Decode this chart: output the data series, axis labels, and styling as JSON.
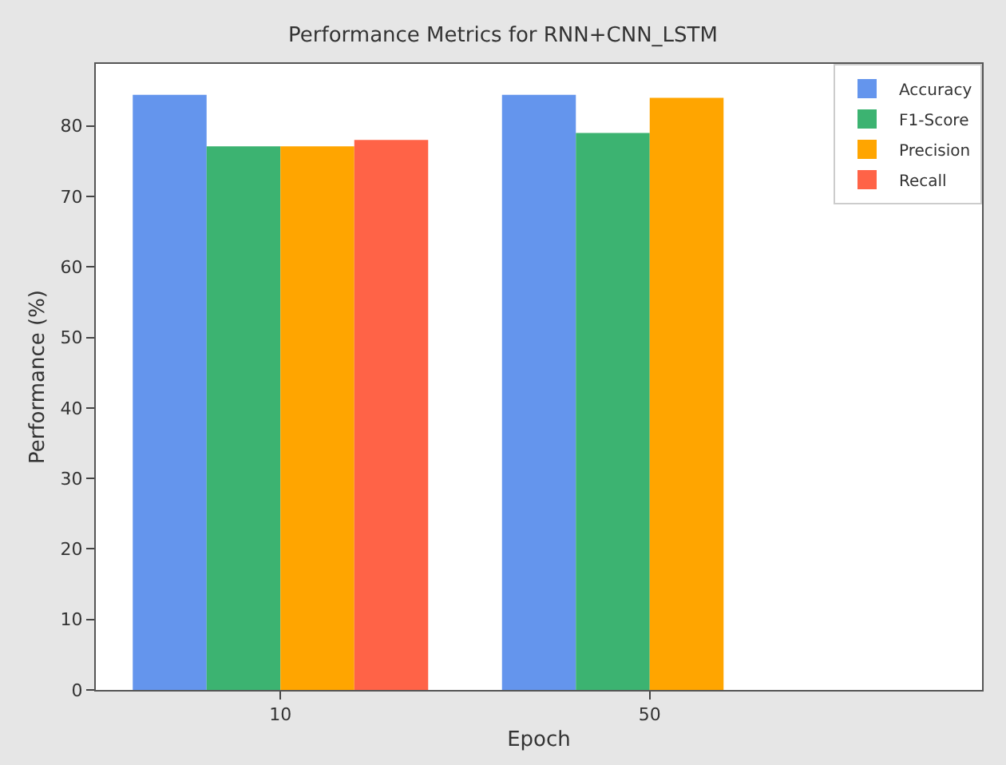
{
  "chart_data": {
    "type": "bar",
    "title": "Performance Metrics for RNN+CNN_LSTM",
    "xlabel": "Epoch",
    "ylabel": "Performance (%)",
    "categories": [
      "10",
      "50"
    ],
    "series": [
      {
        "name": "Accuracy",
        "color": "#6495ed",
        "values": [
          84.4,
          84.4
        ]
      },
      {
        "name": "F1-Score",
        "color": "#3cb371",
        "values": [
          77.1,
          79.0
        ]
      },
      {
        "name": "Precision",
        "color": "#ffa500",
        "values": [
          77.1,
          84.0
        ]
      },
      {
        "name": "Recall",
        "color": "#ff6347",
        "values": [
          78.0,
          null
        ]
      }
    ],
    "ylim": [
      0,
      88.8
    ],
    "yticks": [
      0,
      10,
      20,
      30,
      40,
      50,
      60,
      70,
      80
    ],
    "legend": "top right"
  }
}
